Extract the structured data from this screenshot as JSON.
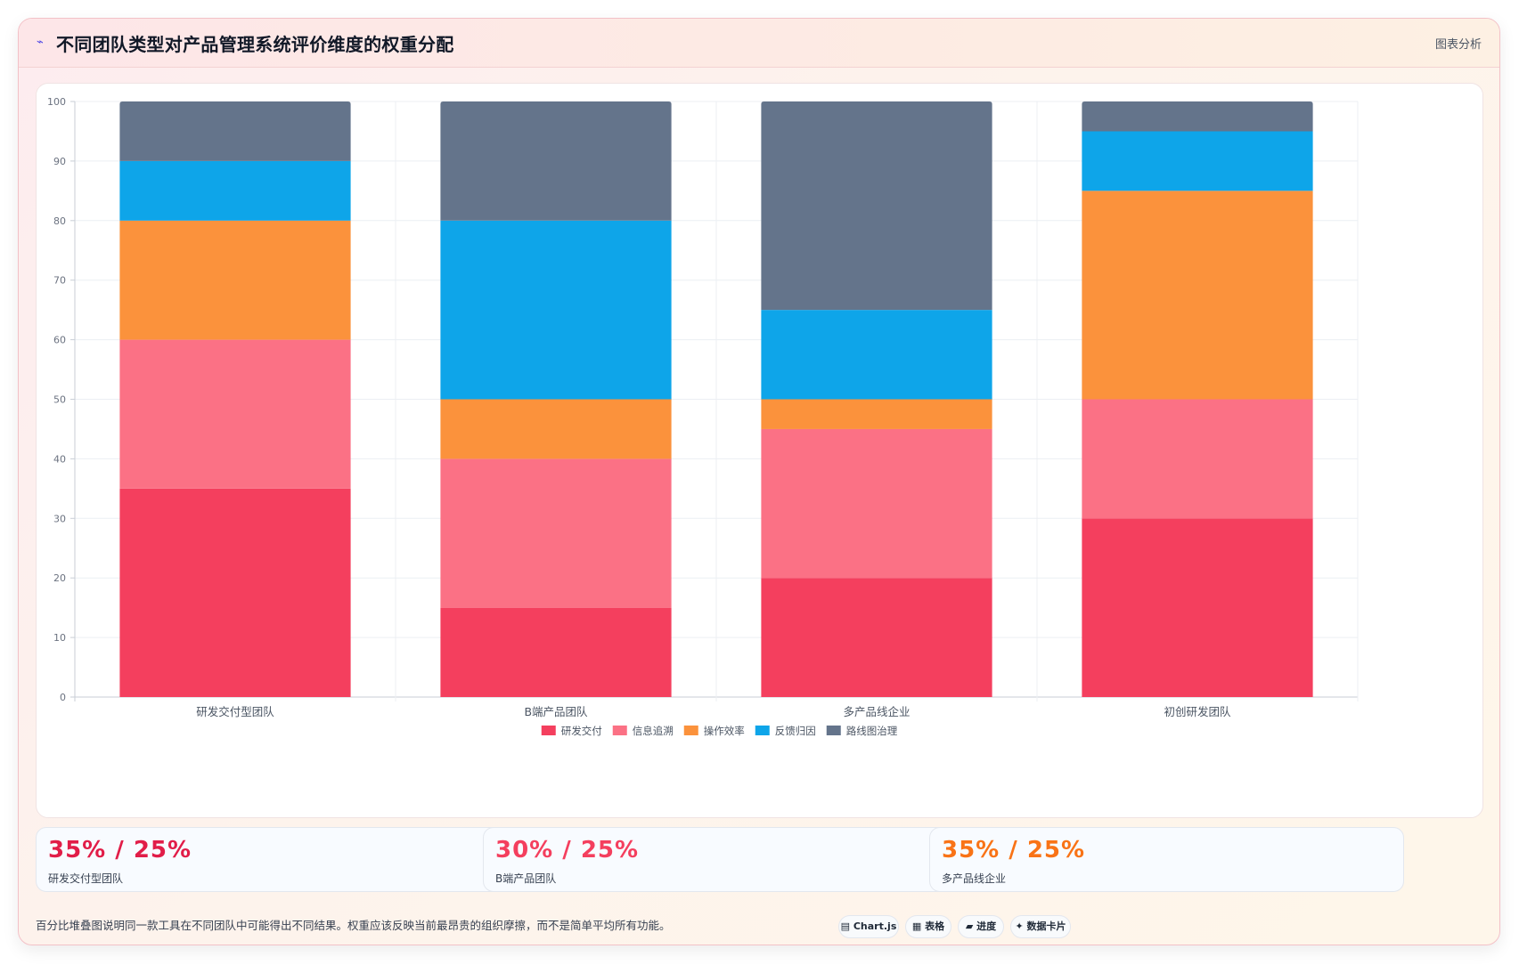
{
  "header": {
    "icon": "chart-line-icon",
    "title": "不同团队类型对产品管理系统评价维度的权重分配",
    "tag": "图表分析"
  },
  "chart_data": {
    "type": "bar",
    "stacked": true,
    "categories": [
      "研发交付型团队",
      "B端产品团队",
      "多产品线企业",
      "初创研发团队"
    ],
    "series": [
      {
        "name": "研发交付",
        "color": "#f43f5e",
        "values": [
          35,
          15,
          20,
          30
        ]
      },
      {
        "name": "信息追溯",
        "color": "#fb7185",
        "values": [
          25,
          25,
          25,
          20
        ]
      },
      {
        "name": "操作效率",
        "color": "#fb923c",
        "values": [
          20,
          10,
          5,
          35
        ]
      },
      {
        "name": "反馈归因",
        "color": "#0ea5e9",
        "values": [
          10,
          30,
          15,
          10
        ]
      },
      {
        "name": "路线图治理",
        "color": "#64748b",
        "values": [
          10,
          20,
          35,
          5
        ]
      }
    ],
    "ylim": [
      0,
      100
    ],
    "yticks": [
      0,
      10,
      20,
      30,
      40,
      50,
      60,
      70,
      80,
      90,
      100
    ],
    "grid": true,
    "legend": "bottom"
  },
  "stats": [
    {
      "value": "35% / 25%",
      "label": "研发交付型团队",
      "color": "#e11d48"
    },
    {
      "value": "30% / 25%",
      "label": "B端产品团队",
      "color": "#f43f5e"
    },
    {
      "value": "35% / 25%",
      "label": "多产品线企业",
      "color": "#f97316"
    }
  ],
  "footer": {
    "note": "百分比堆叠图说明同一款工具在不同团队中可能得出不同结果。权重应该反映当前最昂贵的组织摩擦，而不是简单平均所有功能。",
    "pills": [
      {
        "icon": "chart-icon",
        "glyph": "▤",
        "label": "Chart.js"
      },
      {
        "icon": "table-icon",
        "glyph": "▦",
        "label": "表格"
      },
      {
        "icon": "progress-icon",
        "glyph": "▰",
        "label": "进度"
      },
      {
        "icon": "sparkle-icon",
        "glyph": "✦",
        "label": "数据卡片"
      }
    ]
  }
}
